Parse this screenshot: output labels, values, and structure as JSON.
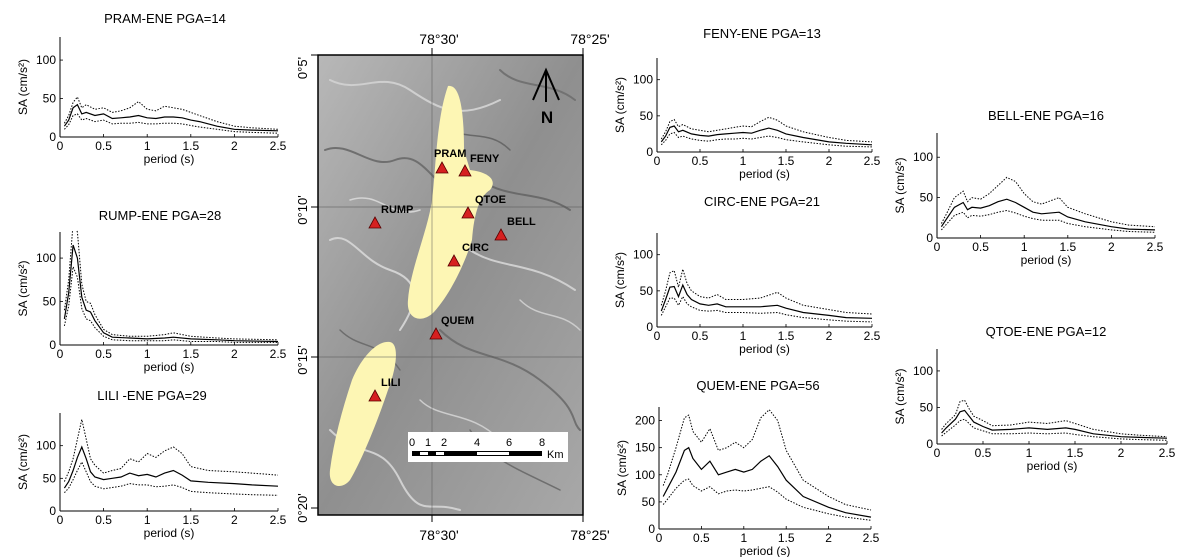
{
  "figure": {
    "panel_ids": [
      "PRAM",
      "RUMP",
      "LILI",
      "FENY",
      "CIRC",
      "QUEM",
      "BELL",
      "QTOE"
    ]
  },
  "chart_data": [
    {
      "id": "PRAM",
      "type": "line",
      "title": "PRAM-ENE  PGA=14",
      "xlabel": "period (s)",
      "ylabel": "SA (cm/s²)",
      "xlim": [
        0,
        2.5
      ],
      "ylim": [
        0,
        130
      ],
      "xticks": [
        0,
        0.5,
        1,
        1.5,
        2,
        2.5
      ],
      "xtick_labels": [
        "0",
        "0.5",
        "1",
        "1.5",
        "2",
        "2.5"
      ],
      "yticks": [
        0,
        50,
        100
      ],
      "ytick_labels": [
        "0",
        "50",
        "100"
      ],
      "x": [
        0.05,
        0.1,
        0.15,
        0.2,
        0.25,
        0.3,
        0.4,
        0.5,
        0.6,
        0.7,
        0.8,
        0.9,
        1.0,
        1.1,
        1.2,
        1.3,
        1.4,
        1.5,
        1.6,
        1.8,
        2.0,
        2.2,
        2.5
      ],
      "series": [
        {
          "style": "dotted",
          "values": [
            18,
            28,
            45,
            52,
            38,
            42,
            36,
            38,
            32,
            34,
            38,
            46,
            36,
            34,
            40,
            38,
            36,
            32,
            28,
            20,
            14,
            12,
            10
          ]
        },
        {
          "style": "solid",
          "values": [
            14,
            22,
            38,
            42,
            30,
            32,
            28,
            30,
            24,
            25,
            26,
            28,
            25,
            24,
            26,
            26,
            25,
            22,
            20,
            14,
            10,
            9,
            8
          ]
        },
        {
          "style": "dotted",
          "values": [
            10,
            16,
            28,
            30,
            22,
            24,
            20,
            22,
            17,
            18,
            18,
            19,
            17,
            17,
            18,
            18,
            17,
            15,
            13,
            10,
            7,
            6,
            5
          ]
        }
      ]
    },
    {
      "id": "RUMP",
      "type": "line",
      "title": "RUMP-ENE   PGA=28",
      "xlabel": "period (s)",
      "ylabel": "SA (cm/s²)",
      "xlim": [
        0,
        2.5
      ],
      "ylim": [
        0,
        130
      ],
      "xticks": [
        0,
        0.5,
        1,
        1.5,
        2,
        2.5
      ],
      "xtick_labels": [
        "0",
        "0.5",
        "1",
        "1.5",
        "2",
        "2.5"
      ],
      "yticks": [
        0,
        50,
        100
      ],
      "ytick_labels": [
        "0",
        "50",
        "100"
      ],
      "x": [
        0.05,
        0.1,
        0.15,
        0.2,
        0.25,
        0.3,
        0.35,
        0.4,
        0.5,
        0.6,
        0.8,
        1.0,
        1.2,
        1.3,
        1.5,
        1.8,
        2.0,
        2.5
      ],
      "series": [
        {
          "style": "dotted",
          "values": [
            40,
            75,
            140,
            130,
            70,
            50,
            48,
            35,
            18,
            12,
            10,
            10,
            12,
            14,
            10,
            8,
            7,
            6
          ]
        },
        {
          "style": "solid",
          "values": [
            30,
            60,
            115,
            100,
            55,
            40,
            38,
            28,
            14,
            9,
            8,
            7,
            8,
            9,
            7,
            6,
            5,
            4
          ]
        },
        {
          "style": "dotted",
          "values": [
            22,
            45,
            90,
            78,
            42,
            30,
            28,
            20,
            10,
            6,
            5,
            5,
            5,
            6,
            4,
            4,
            3,
            3
          ]
        }
      ]
    },
    {
      "id": "LILI",
      "type": "line",
      "title": "LILI -ENE   PGA=29",
      "xlabel": "period (s)",
      "ylabel": "SA (cm/s²)",
      "xlim": [
        0,
        2.5
      ],
      "ylim": [
        0,
        150
      ],
      "xticks": [
        0,
        0.5,
        1,
        1.5,
        2,
        2.5
      ],
      "xtick_labels": [
        "0",
        "0.5",
        "1",
        "1.5",
        "2",
        "2.5"
      ],
      "yticks": [
        0,
        50,
        100
      ],
      "ytick_labels": [
        "0",
        "50",
        "100"
      ],
      "x": [
        0.05,
        0.1,
        0.15,
        0.2,
        0.25,
        0.3,
        0.35,
        0.4,
        0.5,
        0.6,
        0.7,
        0.8,
        0.9,
        1.0,
        1.1,
        1.2,
        1.3,
        1.4,
        1.5,
        1.7,
        2.0,
        2.2,
        2.5
      ],
      "series": [
        {
          "style": "dotted",
          "values": [
            45,
            60,
            80,
            110,
            140,
            110,
            80,
            70,
            58,
            62,
            65,
            80,
            75,
            88,
            82,
            92,
            98,
            88,
            68,
            62,
            60,
            58,
            55
          ]
        },
        {
          "style": "solid",
          "values": [
            35,
            45,
            62,
            82,
            98,
            80,
            60,
            52,
            48,
            50,
            52,
            58,
            54,
            56,
            52,
            58,
            62,
            55,
            46,
            44,
            42,
            40,
            38
          ]
        },
        {
          "style": "dotted",
          "values": [
            28,
            35,
            48,
            62,
            75,
            60,
            45,
            38,
            34,
            36,
            38,
            42,
            40,
            40,
            37,
            38,
            40,
            36,
            30,
            28,
            26,
            25,
            24
          ]
        }
      ]
    },
    {
      "id": "FENY",
      "type": "line",
      "title": "FENY-ENE    PGA=13",
      "xlabel": "period (s)",
      "ylabel": "SA (cm/s²)",
      "xlim": [
        0,
        2.5
      ],
      "ylim": [
        0,
        130
      ],
      "xticks": [
        0,
        0.5,
        1,
        1.5,
        2,
        2.5
      ],
      "xtick_labels": [
        "0",
        "0.5",
        "1",
        "1.5",
        "2",
        "2.5"
      ],
      "yticks": [
        0,
        50,
        100
      ],
      "ytick_labels": [
        "0",
        "50",
        "100"
      ],
      "x": [
        0.05,
        0.1,
        0.15,
        0.2,
        0.25,
        0.3,
        0.4,
        0.5,
        0.6,
        0.7,
        0.8,
        0.9,
        1.0,
        1.1,
        1.2,
        1.3,
        1.4,
        1.5,
        1.7,
        2.0,
        2.2,
        2.5
      ],
      "series": [
        {
          "style": "dotted",
          "values": [
            18,
            28,
            42,
            45,
            35,
            38,
            32,
            30,
            28,
            30,
            32,
            34,
            36,
            35,
            42,
            48,
            44,
            36,
            28,
            20,
            16,
            14
          ]
        },
        {
          "style": "solid",
          "values": [
            14,
            22,
            34,
            36,
            28,
            30,
            25,
            23,
            22,
            24,
            25,
            26,
            27,
            26,
            30,
            33,
            30,
            25,
            20,
            14,
            12,
            10
          ]
        },
        {
          "style": "dotted",
          "values": [
            10,
            16,
            25,
            27,
            20,
            22,
            18,
            16,
            15,
            17,
            18,
            18,
            19,
            18,
            20,
            22,
            20,
            17,
            14,
            10,
            8,
            7
          ]
        }
      ]
    },
    {
      "id": "CIRC",
      "type": "line",
      "title": "CIRC-ENE PGA=21",
      "xlabel": "period (s)",
      "ylabel": "SA (cm/s²)",
      "xlim": [
        0,
        2.5
      ],
      "ylim": [
        0,
        130
      ],
      "xticks": [
        0,
        0.5,
        1,
        1.5,
        2,
        2.5
      ],
      "xtick_labels": [
        "0",
        "0.5",
        "1",
        "1.5",
        "2",
        "2.5"
      ],
      "yticks": [
        0,
        50,
        100
      ],
      "ytick_labels": [
        "0",
        "50",
        "100"
      ],
      "x": [
        0.05,
        0.1,
        0.15,
        0.2,
        0.25,
        0.3,
        0.35,
        0.4,
        0.5,
        0.6,
        0.7,
        0.8,
        1.0,
        1.2,
        1.4,
        1.5,
        1.7,
        2.0,
        2.2,
        2.5
      ],
      "series": [
        {
          "style": "dotted",
          "values": [
            30,
            50,
            75,
            78,
            55,
            80,
            60,
            50,
            42,
            40,
            45,
            38,
            38,
            40,
            48,
            40,
            30,
            24,
            20,
            18
          ]
        },
        {
          "style": "solid",
          "values": [
            22,
            38,
            55,
            56,
            42,
            58,
            45,
            38,
            32,
            30,
            32,
            28,
            28,
            28,
            30,
            26,
            20,
            16,
            13,
            12
          ]
        },
        {
          "style": "dotted",
          "values": [
            16,
            28,
            40,
            40,
            30,
            42,
            32,
            28,
            23,
            22,
            23,
            20,
            20,
            19,
            20,
            17,
            13,
            10,
            8,
            7
          ]
        }
      ]
    },
    {
      "id": "QUEM",
      "type": "line",
      "title": "QUEM-ENE    PGA=56",
      "xlabel": "period (s)",
      "ylabel": "SA (cm/s²)",
      "xlim": [
        0,
        2.5
      ],
      "ylim": [
        0,
        225
      ],
      "xticks": [
        0,
        0.5,
        1,
        1.5,
        2,
        2.5
      ],
      "xtick_labels": [
        "0",
        "0.5",
        "1",
        "1.5",
        "2",
        "2.5"
      ],
      "yticks": [
        0,
        50,
        100,
        150,
        200
      ],
      "ytick_labels": [
        "0",
        "50",
        "100",
        "150",
        "200"
      ],
      "x": [
        0.05,
        0.1,
        0.2,
        0.3,
        0.35,
        0.4,
        0.5,
        0.6,
        0.7,
        0.8,
        0.9,
        1.0,
        1.1,
        1.2,
        1.3,
        1.4,
        1.5,
        1.7,
        2.0,
        2.2,
        2.5
      ],
      "series": [
        {
          "style": "dotted",
          "values": [
            80,
            100,
            150,
            205,
            210,
            180,
            160,
            185,
            145,
            150,
            160,
            150,
            165,
            205,
            220,
            200,
            145,
            90,
            60,
            45,
            35
          ]
        },
        {
          "style": "solid",
          "values": [
            60,
            75,
            105,
            145,
            150,
            130,
            110,
            125,
            100,
            105,
            110,
            105,
            110,
            125,
            135,
            115,
            90,
            60,
            40,
            30,
            22
          ]
        },
        {
          "style": "dotted",
          "values": [
            45,
            55,
            75,
            90,
            92,
            80,
            70,
            78,
            65,
            70,
            72,
            70,
            72,
            75,
            78,
            68,
            55,
            40,
            28,
            22,
            16
          ]
        }
      ]
    },
    {
      "id": "BELL",
      "type": "line",
      "title": "BELL-ENE  PGA=16",
      "xlabel": "period (s)",
      "ylabel": "SA (cm/s²)",
      "xlim": [
        0,
        2.5
      ],
      "ylim": [
        0,
        130
      ],
      "xticks": [
        0,
        0.5,
        1,
        1.5,
        2,
        2.5
      ],
      "xtick_labels": [
        "0",
        "0.5",
        "1",
        "1.5",
        "2",
        "2.5"
      ],
      "yticks": [
        0,
        50,
        100
      ],
      "ytick_labels": [
        "0",
        "50",
        "100"
      ],
      "x": [
        0.05,
        0.1,
        0.2,
        0.3,
        0.35,
        0.4,
        0.5,
        0.6,
        0.7,
        0.8,
        0.9,
        1.0,
        1.1,
        1.2,
        1.4,
        1.5,
        1.7,
        2.0,
        2.2,
        2.5
      ],
      "series": [
        {
          "style": "dotted",
          "values": [
            18,
            28,
            50,
            58,
            45,
            50,
            48,
            55,
            65,
            75,
            70,
            55,
            45,
            42,
            50,
            38,
            30,
            20,
            16,
            14
          ]
        },
        {
          "style": "solid",
          "values": [
            14,
            22,
            38,
            44,
            35,
            38,
            37,
            40,
            45,
            48,
            44,
            38,
            32,
            30,
            32,
            26,
            20,
            14,
            11,
            10
          ]
        },
        {
          "style": "dotted",
          "values": [
            10,
            16,
            28,
            32,
            25,
            28,
            27,
            29,
            32,
            34,
            31,
            27,
            24,
            22,
            22,
            18,
            14,
            10,
            8,
            7
          ]
        }
      ]
    },
    {
      "id": "QTOE",
      "type": "line",
      "title": "QTOE-ENE    PGA=12",
      "xlabel": "period (s)",
      "ylabel": "SA (cm/s²)",
      "xlim": [
        0,
        2.5
      ],
      "ylim": [
        0,
        130
      ],
      "xticks": [
        0,
        0.5,
        1,
        1.5,
        2,
        2.5
      ],
      "xtick_labels": [
        "0",
        "0.5",
        "1",
        "1.5",
        "2",
        "2.5"
      ],
      "yticks": [
        0,
        50,
        100
      ],
      "ytick_labels": [
        "0",
        "50",
        "100"
      ],
      "x": [
        0.05,
        0.1,
        0.2,
        0.25,
        0.3,
        0.35,
        0.4,
        0.5,
        0.6,
        0.8,
        1.0,
        1.2,
        1.4,
        1.5,
        1.7,
        2.0,
        2.2,
        2.5
      ],
      "series": [
        {
          "style": "dotted",
          "values": [
            20,
            28,
            40,
            58,
            60,
            48,
            38,
            32,
            25,
            26,
            30,
            28,
            32,
            28,
            20,
            14,
            12,
            10
          ]
        },
        {
          "style": "solid",
          "values": [
            15,
            22,
            34,
            44,
            46,
            38,
            30,
            24,
            19,
            20,
            22,
            20,
            22,
            20,
            14,
            10,
            9,
            8
          ]
        },
        {
          "style": "dotted",
          "values": [
            11,
            16,
            26,
            32,
            34,
            28,
            22,
            18,
            14,
            14,
            15,
            14,
            15,
            13,
            10,
            7,
            6,
            5
          ]
        }
      ]
    }
  ],
  "map": {
    "top_lon_labels": [
      "78°30'",
      "78°25'"
    ],
    "bottom_lon_labels": [
      "78°30'",
      "78°25'"
    ],
    "lat_labels": [
      "0°5'",
      "0°10'",
      "0°15'",
      "0°20'"
    ],
    "north_label": "N",
    "scale_labels": [
      "0",
      "1",
      "2",
      "4",
      "6",
      "8"
    ],
    "scale_unit": "Km",
    "stations": [
      "PRAM",
      "FENY",
      "QTOE",
      "BELL",
      "RUMP",
      "CIRC",
      "QUEM",
      "LILI"
    ],
    "colors": {
      "terrain": "#9a9a9a",
      "zone": "#fdf6b4",
      "station": "#d62020"
    }
  }
}
